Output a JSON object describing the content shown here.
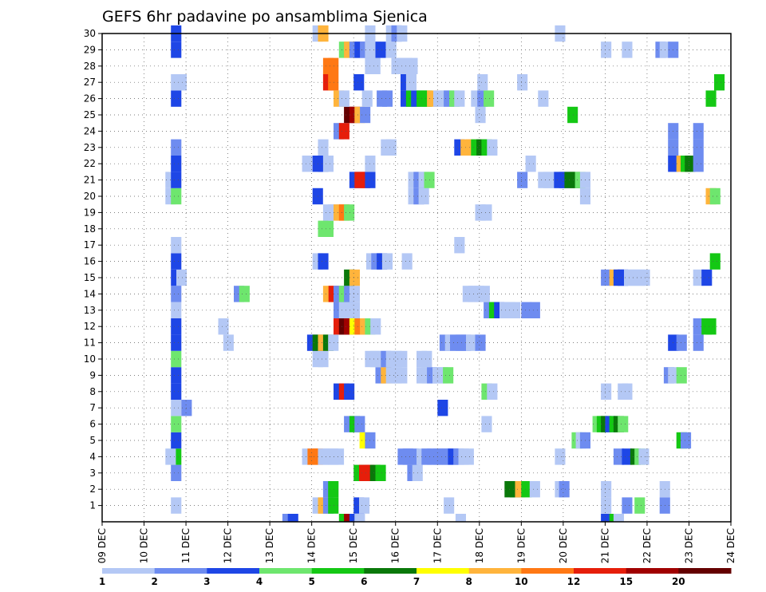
{
  "chart_data": {
    "type": "heatmap",
    "title": "GEFS 6hr padavine po ansamblima Sjenica",
    "y_members": [
      "1",
      "2",
      "3",
      "4",
      "5",
      "6",
      "7",
      "8",
      "9",
      "10",
      "11",
      "12",
      "13",
      "14",
      "15",
      "16",
      "17",
      "18",
      "19",
      "20",
      "21",
      "22",
      "23",
      "24",
      "25",
      "26",
      "27",
      "28",
      "29",
      "30"
    ],
    "x_dates": [
      "09 DEC",
      "10 DEC",
      "11 DEC",
      "12 DEC",
      "13 DEC",
      "14 DEC",
      "15 DEC",
      "16 DEC",
      "17 DEC",
      "18 DEC",
      "19 DEC",
      "20 DEC",
      "21 DEC",
      "22 DEC",
      "23 DEC",
      "24 DEC"
    ],
    "x_range_days": [
      0,
      15
    ],
    "grid": true,
    "legend_position": "bottom",
    "legend": {
      "labels": [
        "1",
        "2",
        "3",
        "4",
        "5",
        "6",
        "7",
        "8",
        "10",
        "12",
        "15",
        "20"
      ],
      "colors": [
        "#b4c8f5",
        "#6e8cf0",
        "#1e46e6",
        "#6ee66e",
        "#14c814",
        "#0a780a",
        "#ffff00",
        "#ffb43c",
        "#ff7814",
        "#e61e0a",
        "#a00000",
        "#640000"
      ]
    },
    "cells": [
      [
        1,
        1.64,
        1
      ],
      [
        1,
        5.02,
        1
      ],
      [
        1,
        5.15,
        8
      ],
      [
        1,
        5.27,
        2
      ],
      [
        1,
        5.39,
        5
      ],
      [
        1,
        6.0,
        3
      ],
      [
        1,
        6.13,
        1
      ],
      [
        1,
        8.15,
        1
      ],
      [
        1,
        11.9,
        1
      ],
      [
        1,
        12.4,
        2
      ],
      [
        1,
        12.7,
        4
      ],
      [
        1,
        13.3,
        2
      ],
      [
        2,
        5.27,
        2
      ],
      [
        2,
        5.39,
        5
      ],
      [
        2,
        9.6,
        6
      ],
      [
        2,
        9.73,
        6
      ],
      [
        2,
        9.85,
        8
      ],
      [
        2,
        10.0,
        5
      ],
      [
        2,
        10.2,
        1
      ],
      [
        2,
        10.8,
        1
      ],
      [
        2,
        10.9,
        2
      ],
      [
        2,
        11.9,
        1
      ],
      [
        2,
        13.3,
        1
      ],
      [
        3,
        1.64,
        2
      ],
      [
        3,
        6.0,
        5
      ],
      [
        3,
        6.13,
        10
      ],
      [
        3,
        6.25,
        10
      ],
      [
        3,
        6.39,
        6
      ],
      [
        3,
        6.52,
        5
      ],
      [
        3,
        7.28,
        2
      ],
      [
        3,
        7.4,
        1
      ],
      [
        4,
        1.64,
        5
      ],
      [
        4,
        1.51,
        1
      ],
      [
        4,
        4.77,
        1
      ],
      [
        4,
        4.9,
        9
      ],
      [
        4,
        5.02,
        9
      ],
      [
        4,
        5.15,
        1
      ],
      [
        4,
        5.27,
        1
      ],
      [
        4,
        5.39,
        1
      ],
      [
        4,
        5.52,
        1
      ],
      [
        4,
        7.05,
        2
      ],
      [
        4,
        7.17,
        2
      ],
      [
        4,
        7.3,
        2
      ],
      [
        4,
        7.5,
        1
      ],
      [
        4,
        7.62,
        2
      ],
      [
        4,
        7.75,
        2
      ],
      [
        4,
        7.88,
        2
      ],
      [
        4,
        8.0,
        2
      ],
      [
        4,
        8.12,
        2
      ],
      [
        4,
        8.25,
        3
      ],
      [
        4,
        8.38,
        2
      ],
      [
        4,
        8.5,
        1
      ],
      [
        4,
        8.62,
        1
      ],
      [
        4,
        10.8,
        1
      ],
      [
        4,
        12.2,
        2
      ],
      [
        4,
        12.4,
        3
      ],
      [
        4,
        12.6,
        6
      ],
      [
        4,
        12.7,
        4
      ],
      [
        4,
        12.8,
        1
      ],
      [
        5,
        1.64,
        3
      ],
      [
        5,
        6.14,
        7
      ],
      [
        5,
        6.27,
        2
      ],
      [
        5,
        11.2,
        4
      ],
      [
        5,
        11.3,
        1
      ],
      [
        5,
        11.4,
        2
      ],
      [
        5,
        13.7,
        5
      ],
      [
        5,
        13.8,
        2
      ],
      [
        6,
        1.64,
        4
      ],
      [
        6,
        5.77,
        2
      ],
      [
        6,
        5.9,
        5
      ],
      [
        6,
        6.02,
        2
      ],
      [
        6,
        9.05,
        1
      ],
      [
        6,
        11.7,
        4
      ],
      [
        6,
        11.8,
        5
      ],
      [
        6,
        11.9,
        6
      ],
      [
        6,
        12.0,
        3
      ],
      [
        6,
        12.1,
        5
      ],
      [
        6,
        12.2,
        6
      ],
      [
        6,
        12.3,
        4
      ],
      [
        7,
        1.64,
        1
      ],
      [
        7,
        1.89,
        2
      ],
      [
        7,
        8.0,
        3
      ],
      [
        8,
        1.64,
        3
      ],
      [
        8,
        5.52,
        3
      ],
      [
        8,
        5.65,
        10
      ],
      [
        8,
        5.77,
        3
      ],
      [
        8,
        9.05,
        4
      ],
      [
        8,
        9.18,
        1
      ],
      [
        8,
        11.9,
        1
      ],
      [
        8,
        12.3,
        1
      ],
      [
        8,
        12.4,
        1
      ],
      [
        9,
        1.64,
        3
      ],
      [
        9,
        6.52,
        2
      ],
      [
        9,
        6.65,
        8
      ],
      [
        9,
        6.77,
        1
      ],
      [
        9,
        6.9,
        1
      ],
      [
        9,
        7.03,
        1
      ],
      [
        9,
        7.5,
        1
      ],
      [
        9,
        7.62,
        1
      ],
      [
        9,
        7.75,
        2
      ],
      [
        9,
        7.88,
        1
      ],
      [
        9,
        8.0,
        1
      ],
      [
        9,
        8.13,
        4
      ],
      [
        9,
        13.4,
        2
      ],
      [
        9,
        13.5,
        1
      ],
      [
        9,
        13.7,
        4
      ],
      [
        10,
        1.64,
        4
      ],
      [
        10,
        5.02,
        1
      ],
      [
        10,
        5.15,
        1
      ],
      [
        10,
        6.27,
        1
      ],
      [
        10,
        6.39,
        1
      ],
      [
        10,
        6.52,
        1
      ],
      [
        10,
        6.65,
        2
      ],
      [
        10,
        6.77,
        1
      ],
      [
        10,
        6.9,
        1
      ],
      [
        10,
        7.03,
        1
      ],
      [
        10,
        7.5,
        1
      ],
      [
        10,
        7.62,
        1
      ],
      [
        11,
        1.64,
        3
      ],
      [
        11,
        2.89,
        1
      ],
      [
        11,
        4.89,
        3
      ],
      [
        11,
        5.02,
        6
      ],
      [
        11,
        5.15,
        8
      ],
      [
        11,
        5.27,
        6
      ],
      [
        11,
        5.39,
        1
      ],
      [
        11,
        8.05,
        2
      ],
      [
        11,
        8.18,
        1
      ],
      [
        11,
        8.3,
        2
      ],
      [
        11,
        8.43,
        2
      ],
      [
        11,
        8.55,
        2
      ],
      [
        11,
        8.68,
        1
      ],
      [
        11,
        8.9,
        2
      ],
      [
        11,
        13.5,
        3
      ],
      [
        11,
        13.7,
        2
      ],
      [
        11,
        14.1,
        2
      ],
      [
        12,
        1.64,
        3
      ],
      [
        12,
        2.77,
        1
      ],
      [
        12,
        5.52,
        10
      ],
      [
        12,
        5.65,
        12
      ],
      [
        12,
        5.77,
        11
      ],
      [
        12,
        5.9,
        7
      ],
      [
        12,
        6.02,
        9
      ],
      [
        12,
        6.15,
        8
      ],
      [
        12,
        6.27,
        4
      ],
      [
        12,
        6.4,
        1
      ],
      [
        12,
        14.1,
        2
      ],
      [
        12,
        14.3,
        5
      ],
      [
        12,
        14.4,
        5
      ],
      [
        13,
        1.64,
        1
      ],
      [
        13,
        5.52,
        2
      ],
      [
        13,
        5.65,
        1
      ],
      [
        13,
        5.77,
        1
      ],
      [
        13,
        5.9,
        1
      ],
      [
        13,
        9.1,
        2
      ],
      [
        13,
        9.23,
        5
      ],
      [
        13,
        9.35,
        3
      ],
      [
        13,
        9.48,
        1
      ],
      [
        13,
        9.61,
        1
      ],
      [
        13,
        9.73,
        1
      ],
      [
        13,
        10.0,
        2
      ],
      [
        13,
        10.2,
        2
      ],
      [
        14,
        1.64,
        2
      ],
      [
        14,
        3.14,
        2
      ],
      [
        14,
        3.27,
        4
      ],
      [
        14,
        5.27,
        8
      ],
      [
        14,
        5.4,
        10
      ],
      [
        14,
        5.52,
        2
      ],
      [
        14,
        5.65,
        4
      ],
      [
        14,
        5.77,
        2
      ],
      [
        14,
        5.9,
        1
      ],
      [
        14,
        8.6,
        1
      ],
      [
        14,
        8.73,
        1
      ],
      [
        14,
        8.86,
        1
      ],
      [
        14,
        9.0,
        1
      ],
      [
        15,
        1.64,
        3
      ],
      [
        15,
        1.77,
        1
      ],
      [
        15,
        5.77,
        6
      ],
      [
        15,
        5.9,
        8
      ],
      [
        15,
        11.9,
        2
      ],
      [
        15,
        12.1,
        8
      ],
      [
        15,
        12.2,
        3
      ],
      [
        15,
        12.3,
        3
      ],
      [
        15,
        12.45,
        1
      ],
      [
        15,
        12.57,
        1
      ],
      [
        15,
        12.7,
        1
      ],
      [
        15,
        12.82,
        1
      ],
      [
        15,
        14.1,
        1
      ],
      [
        15,
        14.3,
        3
      ],
      [
        16,
        1.64,
        3
      ],
      [
        16,
        5.02,
        1
      ],
      [
        16,
        5.15,
        3
      ],
      [
        16,
        6.3,
        1
      ],
      [
        16,
        6.42,
        2
      ],
      [
        16,
        6.55,
        3
      ],
      [
        16,
        6.68,
        1
      ],
      [
        16,
        7.15,
        1
      ],
      [
        16,
        14.5,
        5
      ],
      [
        17,
        1.64,
        1
      ],
      [
        17,
        8.4,
        1
      ],
      [
        18,
        5.15,
        4
      ],
      [
        18,
        5.27,
        4
      ],
      [
        19,
        5.27,
        1
      ],
      [
        19,
        5.39,
        1
      ],
      [
        19,
        5.52,
        8
      ],
      [
        19,
        5.65,
        9
      ],
      [
        19,
        5.77,
        4
      ],
      [
        19,
        8.9,
        1
      ],
      [
        19,
        9.05,
        1
      ],
      [
        20,
        1.51,
        1
      ],
      [
        20,
        1.64,
        4
      ],
      [
        20,
        5.02,
        3
      ],
      [
        20,
        7.3,
        1
      ],
      [
        20,
        7.43,
        2
      ],
      [
        20,
        7.55,
        1
      ],
      [
        20,
        11.4,
        1
      ],
      [
        20,
        14.4,
        8
      ],
      [
        20,
        14.5,
        4
      ],
      [
        21,
        1.51,
        1
      ],
      [
        21,
        1.64,
        3
      ],
      [
        21,
        5.9,
        3
      ],
      [
        21,
        6.02,
        10
      ],
      [
        21,
        6.15,
        10
      ],
      [
        21,
        6.27,
        3
      ],
      [
        21,
        7.3,
        1
      ],
      [
        21,
        7.43,
        2
      ],
      [
        21,
        7.55,
        1
      ],
      [
        21,
        7.68,
        4
      ],
      [
        21,
        9.9,
        2
      ],
      [
        21,
        10.4,
        1
      ],
      [
        21,
        10.52,
        1
      ],
      [
        21,
        10.65,
        1
      ],
      [
        21,
        10.78,
        3
      ],
      [
        21,
        10.9,
        3
      ],
      [
        21,
        11.03,
        6
      ],
      [
        21,
        11.15,
        6
      ],
      [
        21,
        11.28,
        4
      ],
      [
        21,
        11.4,
        1
      ],
      [
        22,
        1.64,
        3
      ],
      [
        22,
        4.77,
        1
      ],
      [
        22,
        5.02,
        3
      ],
      [
        22,
        5.15,
        3
      ],
      [
        22,
        5.27,
        1
      ],
      [
        22,
        6.27,
        1
      ],
      [
        22,
        10.1,
        1
      ],
      [
        22,
        13.5,
        3
      ],
      [
        22,
        13.7,
        8
      ],
      [
        22,
        13.8,
        5
      ],
      [
        22,
        13.9,
        6
      ],
      [
        22,
        14.1,
        2
      ],
      [
        23,
        1.64,
        2
      ],
      [
        23,
        5.15,
        1
      ],
      [
        23,
        6.65,
        1
      ],
      [
        23,
        6.77,
        1
      ],
      [
        23,
        8.4,
        3
      ],
      [
        23,
        8.55,
        8
      ],
      [
        23,
        8.68,
        8
      ],
      [
        23,
        8.8,
        5
      ],
      [
        23,
        8.93,
        6
      ],
      [
        23,
        9.05,
        5
      ],
      [
        23,
        9.18,
        1
      ],
      [
        23,
        13.5,
        2
      ],
      [
        23,
        14.1,
        2
      ],
      [
        24,
        5.52,
        2
      ],
      [
        24,
        5.65,
        10
      ],
      [
        24,
        13.5,
        2
      ],
      [
        24,
        14.1,
        2
      ],
      [
        25,
        5.77,
        12
      ],
      [
        25,
        5.9,
        11
      ],
      [
        25,
        6.02,
        8
      ],
      [
        25,
        6.15,
        2
      ],
      [
        25,
        8.9,
        1
      ],
      [
        25,
        11.1,
        5
      ],
      [
        26,
        1.64,
        3
      ],
      [
        26,
        5.52,
        8
      ],
      [
        26,
        5.65,
        1
      ],
      [
        26,
        6.2,
        1
      ],
      [
        26,
        6.55,
        2
      ],
      [
        26,
        6.68,
        2
      ],
      [
        26,
        7.12,
        3
      ],
      [
        26,
        7.25,
        5
      ],
      [
        26,
        7.37,
        3
      ],
      [
        26,
        7.5,
        5
      ],
      [
        26,
        7.62,
        5
      ],
      [
        26,
        7.75,
        8
      ],
      [
        26,
        7.9,
        1
      ],
      [
        26,
        8.03,
        1
      ],
      [
        26,
        8.15,
        2
      ],
      [
        26,
        8.28,
        4
      ],
      [
        26,
        8.4,
        1
      ],
      [
        26,
        8.8,
        1
      ],
      [
        26,
        8.95,
        2
      ],
      [
        26,
        9.1,
        4
      ],
      [
        26,
        10.4,
        1
      ],
      [
        26,
        14.4,
        5
      ],
      [
        27,
        1.64,
        1
      ],
      [
        27,
        1.77,
        1
      ],
      [
        27,
        5.27,
        10
      ],
      [
        27,
        5.39,
        9
      ],
      [
        27,
        6.0,
        3
      ],
      [
        27,
        7.12,
        3
      ],
      [
        27,
        7.25,
        1
      ],
      [
        27,
        8.95,
        1
      ],
      [
        27,
        9.9,
        1
      ],
      [
        27,
        14.6,
        5
      ],
      [
        28,
        5.27,
        9
      ],
      [
        28,
        5.39,
        9
      ],
      [
        28,
        6.27,
        1
      ],
      [
        28,
        6.39,
        1
      ],
      [
        28,
        6.9,
        1
      ],
      [
        28,
        7.03,
        1
      ],
      [
        28,
        7.15,
        1
      ],
      [
        28,
        7.28,
        1
      ],
      [
        29,
        1.64,
        3
      ],
      [
        29,
        5.65,
        4
      ],
      [
        29,
        5.77,
        8
      ],
      [
        29,
        5.9,
        2
      ],
      [
        29,
        6.02,
        3
      ],
      [
        29,
        6.15,
        2
      ],
      [
        29,
        6.27,
        1
      ],
      [
        29,
        6.39,
        1
      ],
      [
        29,
        6.52,
        3
      ],
      [
        29,
        6.77,
        1
      ],
      [
        29,
        11.9,
        1
      ],
      [
        29,
        12.4,
        1
      ],
      [
        29,
        13.2,
        2
      ],
      [
        29,
        13.3,
        1
      ],
      [
        29,
        13.5,
        2
      ],
      [
        30,
        1.64,
        3
      ],
      [
        30,
        5.02,
        1
      ],
      [
        30,
        5.15,
        8
      ],
      [
        30,
        6.27,
        1
      ],
      [
        30,
        6.77,
        1
      ],
      [
        30,
        6.9,
        2
      ],
      [
        30,
        7.03,
        1
      ],
      [
        30,
        10.8,
        1
      ],
      [
        0,
        4.3,
        2
      ],
      [
        0,
        4.43,
        3
      ],
      [
        0,
        5.65,
        5
      ],
      [
        0,
        5.77,
        11
      ],
      [
        0,
        5.9,
        3
      ],
      [
        0,
        6.02,
        1
      ],
      [
        0,
        8.43,
        1
      ],
      [
        0,
        11.9,
        3
      ],
      [
        0,
        12.1,
        5
      ],
      [
        0,
        12.2,
        1
      ]
    ]
  }
}
